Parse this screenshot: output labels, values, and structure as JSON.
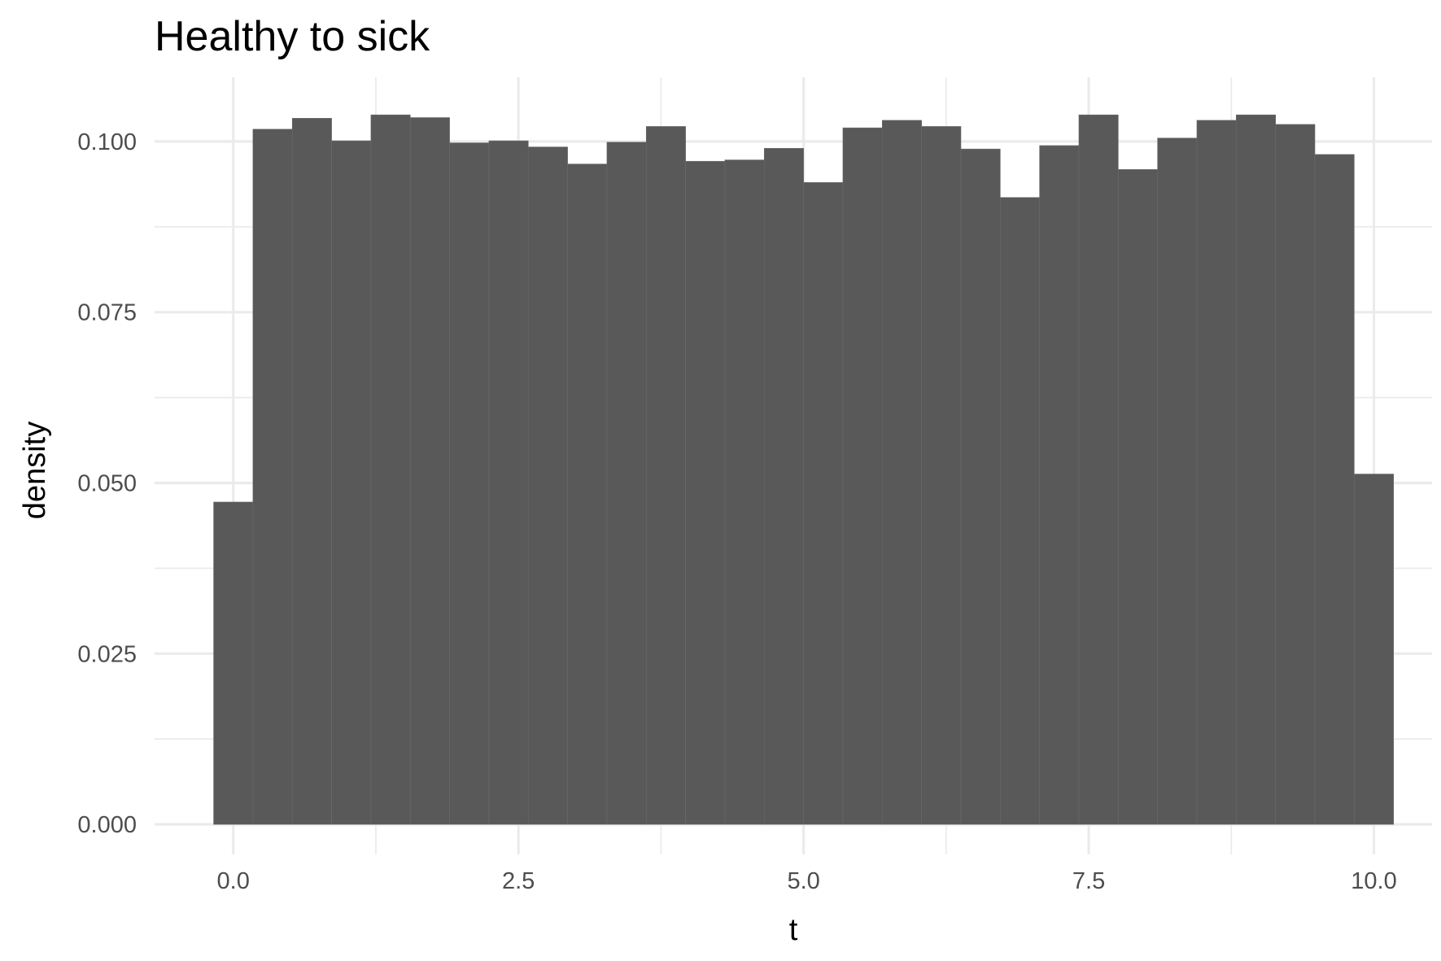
{
  "chart_data": {
    "type": "bar",
    "title": "Healthy to sick",
    "xlabel": "t",
    "ylabel": "density",
    "bins": 30,
    "bin_width": 0.3448,
    "x_tick_labels": [
      "0.0",
      "2.5",
      "5.0",
      "7.5",
      "10.0"
    ],
    "x_tick_values": [
      0.0,
      2.5,
      5.0,
      7.5,
      10.0
    ],
    "y_tick_labels": [
      "0.000",
      "0.025",
      "0.050",
      "0.075",
      "0.100"
    ],
    "y_tick_values": [
      0.0,
      0.025,
      0.05,
      0.075,
      0.1
    ],
    "xlim": [
      -0.69,
      10.51
    ],
    "ylim": [
      -0.0044,
      0.1094
    ],
    "bin_centers": [
      0.0,
      0.3448,
      0.6897,
      1.0345,
      1.3793,
      1.7241,
      2.069,
      2.4138,
      2.7586,
      3.1034,
      3.4483,
      3.7931,
      4.1379,
      4.4828,
      4.8276,
      5.1724,
      5.5172,
      5.8621,
      6.2069,
      6.5517,
      6.8966,
      7.2414,
      7.5862,
      7.931,
      8.2759,
      8.6207,
      8.9655,
      9.3103,
      9.6552,
      10.0
    ],
    "values": [
      0.0472,
      0.1018,
      0.1034,
      0.1001,
      0.1039,
      0.1035,
      0.0998,
      0.1001,
      0.0992,
      0.0967,
      0.0999,
      0.1022,
      0.0971,
      0.0973,
      0.099,
      0.094,
      0.102,
      0.1031,
      0.1022,
      0.0989,
      0.0918,
      0.0994,
      0.1039,
      0.0959,
      0.1005,
      0.1031,
      0.1039,
      0.1025,
      0.0981,
      0.0513
    ],
    "grid": true,
    "bar_color": "#595959",
    "grid_color": "#ebebeb",
    "background": "#ffffff"
  }
}
